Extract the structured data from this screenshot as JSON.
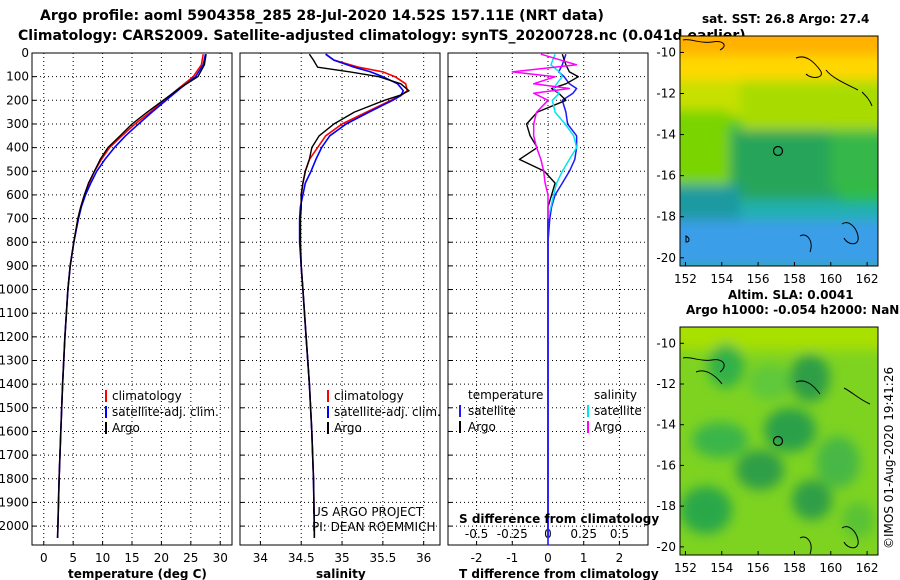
{
  "header": {
    "line1": "Argo profile: aoml 5904358_285 28-Jul-2020 14.52S 157.11E (NRT data)",
    "line2": "Climatology: CARS2009. Satellite-adjusted climatology: synTS_20200728.nc (0.041d earlier)"
  },
  "colors": {
    "climatology": "#ff0000",
    "satellite": "#0000ff",
    "argo": "#000000",
    "t_sat_diff": "#1a1aff",
    "s_sat_diff": "#00e5ee",
    "s_argo_diff": "#ff00ff"
  },
  "depth_ticks": [
    "0",
    "100",
    "200",
    "300",
    "400",
    "500",
    "600",
    "700",
    "800",
    "900",
    "1000",
    "1100",
    "1200",
    "1300",
    "1400",
    "1500",
    "1600",
    "1700",
    "1800",
    "1900",
    "2000"
  ],
  "legend": {
    "climatology": "climatology",
    "satellite_adj": "satellite-adj. clim.",
    "argo": "Argo",
    "temperature": "temperature",
    "salinity": "salinity",
    "satellite": "satellite"
  },
  "credits": {
    "project": "US ARGO PROJECT",
    "pi": "PI: DEAN ROEMMICH"
  },
  "maps": {
    "sst_title": "sat. SST: 26.8 Argo: 27.4",
    "sla_title1": "Altim. SLA: 0.0041",
    "sla_title2": "Argo h1000: -0.054 h2000: NaN",
    "lat_ticks": [
      "-10",
      "-12",
      "-14",
      "-16",
      "-18",
      "-20"
    ],
    "lon_ticks": [
      "152",
      "154",
      "156",
      "158",
      "160",
      "162"
    ],
    "watermark": "©IMOS 01-Aug-2020 19:41:26",
    "float_lat": -14.52,
    "float_lon": 157.11
  },
  "chart_data": [
    {
      "type": "line",
      "name": "temperature",
      "xlabel": "temperature (deg C)",
      "ylabel": "depth",
      "xlim": [
        -2,
        32
      ],
      "ylim": [
        0,
        2080
      ],
      "x_ticks": [
        0,
        5,
        10,
        15,
        20,
        25,
        30
      ],
      "depth": [
        5,
        50,
        100,
        150,
        200,
        250,
        300,
        350,
        400,
        450,
        500,
        550,
        600,
        650,
        700,
        800,
        900,
        1000,
        1200,
        1400,
        1600,
        1800,
        2000,
        2050
      ],
      "series": [
        {
          "name": "climatology",
          "values": [
            27.1,
            26.8,
            25.4,
            22.9,
            20.5,
            18.1,
            15.5,
            13.3,
            11.2,
            9.8,
            8.6,
            7.7,
            6.9,
            6.3,
            5.8,
            5.1,
            4.5,
            4.1,
            3.6,
            3.2,
            2.9,
            2.6,
            2.4,
            2.35
          ]
        },
        {
          "name": "satellite-adj. clim.",
          "values": [
            27.5,
            27.1,
            25.8,
            23.2,
            20.8,
            18.4,
            16.1,
            13.9,
            12.0,
            10.4,
            9.0,
            8.0,
            7.1,
            6.4,
            5.9,
            5.1,
            4.5,
            4.1,
            3.6,
            3.2,
            2.9,
            2.6,
            2.4,
            2.35
          ]
        },
        {
          "name": "Argo",
          "values": [
            27.6,
            27.3,
            26.2,
            23.0,
            20.3,
            17.6,
            15.0,
            13.0,
            10.9,
            9.6,
            8.6,
            7.6,
            6.9,
            6.3,
            5.8,
            5.1,
            4.5,
            4.1,
            3.6,
            3.2,
            2.9,
            2.6,
            2.4,
            2.35
          ]
        }
      ]
    },
    {
      "type": "line",
      "name": "salinity",
      "xlabel": "salinity",
      "ylabel": "depth",
      "xlim": [
        33.75,
        36.2
      ],
      "ylim": [
        0,
        2080
      ],
      "x_ticks": [
        34,
        34.5,
        35,
        35.5,
        36
      ],
      "x_tick_labels": [
        "34",
        "34.5",
        "35",
        "35.5",
        "36"
      ],
      "depth": [
        5,
        30,
        60,
        80,
        100,
        130,
        160,
        180,
        200,
        250,
        300,
        350,
        400,
        450,
        500,
        550,
        600,
        650,
        700,
        750,
        800,
        900,
        1000,
        1200,
        1400,
        1600,
        1800,
        2000,
        2050
      ],
      "series": [
        {
          "name": "climatology",
          "values": [
            34.8,
            34.9,
            35.2,
            35.5,
            35.65,
            35.78,
            35.8,
            35.72,
            35.6,
            35.3,
            35.0,
            34.8,
            34.7,
            34.6,
            34.55,
            34.52,
            34.5,
            34.5,
            34.49,
            34.49,
            34.49,
            34.5,
            34.52,
            34.56,
            34.6,
            34.63,
            34.65,
            34.66,
            34.66
          ]
        },
        {
          "name": "satellite-adj. clim.",
          "values": [
            34.8,
            34.9,
            35.15,
            35.35,
            35.5,
            35.68,
            35.75,
            35.72,
            35.62,
            35.33,
            35.05,
            34.85,
            34.75,
            34.68,
            34.62,
            34.55,
            34.52,
            34.49,
            34.48,
            34.48,
            34.48,
            34.5,
            34.52,
            34.56,
            34.6,
            34.63,
            34.65,
            34.66,
            34.66
          ]
        },
        {
          "name": "Argo",
          "values": [
            34.6,
            34.65,
            34.7,
            35.1,
            35.45,
            35.72,
            35.82,
            35.7,
            35.52,
            35.15,
            34.9,
            34.72,
            34.63,
            34.6,
            34.55,
            34.52,
            34.5,
            34.5,
            34.49,
            34.49,
            34.49,
            34.5,
            34.52,
            34.56,
            34.6,
            34.63,
            34.65,
            34.66,
            34.66
          ]
        }
      ]
    },
    {
      "type": "line",
      "name": "difference",
      "xlabel": "T difference from climatology",
      "x2label": "S difference from climatology",
      "ylabel": "depth",
      "xlim": [
        -2.8,
        2.8
      ],
      "ylim": [
        0,
        2080
      ],
      "x_ticks": [
        -2,
        -1,
        0,
        1,
        2
      ],
      "s_ticks": [
        -0.5,
        -0.25,
        0,
        0.25,
        0.5
      ],
      "s_tick_labels": [
        "-0.5",
        "-0.25",
        "0",
        "0.25",
        "0.5"
      ],
      "s_scale_per_t": 4,
      "depth": [
        5,
        50,
        80,
        100,
        130,
        150,
        170,
        200,
        250,
        300,
        350,
        400,
        450,
        500,
        550,
        600,
        650,
        700,
        800,
        900,
        1000,
        1200,
        1400,
        1600,
        1800,
        2000,
        2050
      ],
      "series": [
        {
          "name": "temperature satellite",
          "values": [
            0.5,
            0.4,
            0.3,
            0.45,
            0.6,
            0.8,
            0.7,
            0.4,
            0.5,
            0.55,
            0.8,
            0.8,
            0.75,
            0.6,
            0.4,
            0.2,
            0.1,
            0.05,
            0,
            0,
            0,
            0,
            0,
            0,
            0,
            0,
            0
          ]
        },
        {
          "name": "temperature Argo",
          "values": [
            0.4,
            0.5,
            0.6,
            0.85,
            0.5,
            0.1,
            0.3,
            0.5,
            -0.3,
            -0.6,
            -0.5,
            -0.3,
            -0.8,
            -0.1,
            0.2,
            0.1,
            0.0,
            0.0,
            0,
            0,
            0,
            0,
            0,
            0,
            0,
            0,
            0
          ]
        },
        {
          "name": "salinity satellite",
          "values": [
            0.05,
            0.02,
            0.08,
            0.1,
            0.06,
            0.04,
            0.08,
            0.03,
            0.05,
            0.12,
            0.18,
            0.2,
            0.15,
            0.1,
            0.06,
            0.04,
            0.02,
            0.0,
            0,
            0,
            0,
            0,
            0,
            0,
            0,
            0,
            0
          ]
        },
        {
          "name": "salinity Argo",
          "values": [
            -0.05,
            0.2,
            -0.25,
            0.05,
            -0.1,
            0.15,
            -0.1,
            0.0,
            -0.08,
            -0.1,
            -0.1,
            -0.08,
            -0.05,
            -0.03,
            -0.02,
            0.0,
            0.0,
            0.0,
            0,
            0,
            0,
            0,
            0,
            0,
            0,
            0,
            0
          ]
        }
      ]
    }
  ]
}
